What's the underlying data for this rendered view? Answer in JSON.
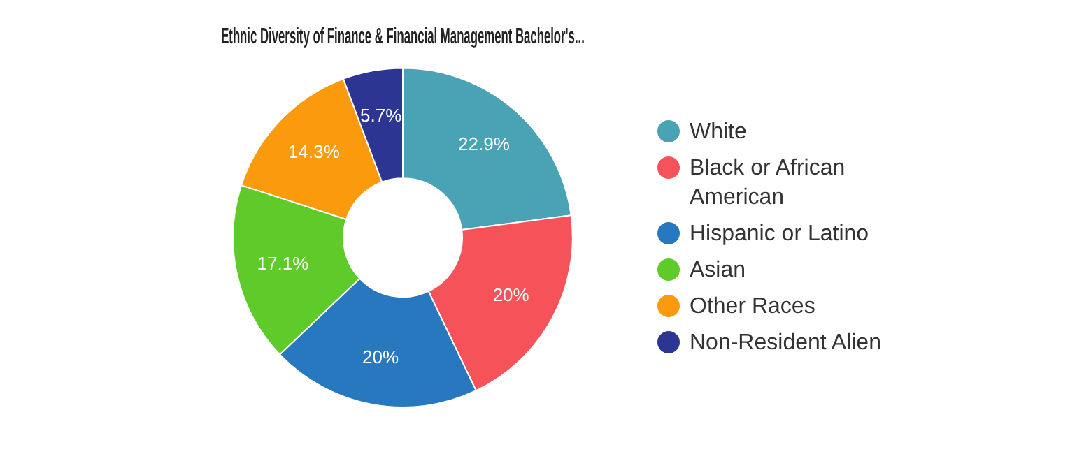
{
  "chart_data": {
    "type": "donut",
    "title": "Ethnic Diversity of Finance & Financial Management Bachelor's...",
    "categories": [
      "White",
      "Black or African American",
      "Hispanic or Latino",
      "Asian",
      "Other Races",
      "Non-Resident Alien"
    ],
    "values": [
      22.9,
      20,
      20,
      17.1,
      14.3,
      5.7
    ],
    "value_labels": [
      "22.9%",
      "20%",
      "20%",
      "17.1%",
      "14.3%",
      "5.7%"
    ],
    "colors": [
      "#4aa3b5",
      "#f5525a",
      "#2878c0",
      "#5ecb2b",
      "#fb9a0c",
      "#2c3592"
    ],
    "legend": "right"
  }
}
